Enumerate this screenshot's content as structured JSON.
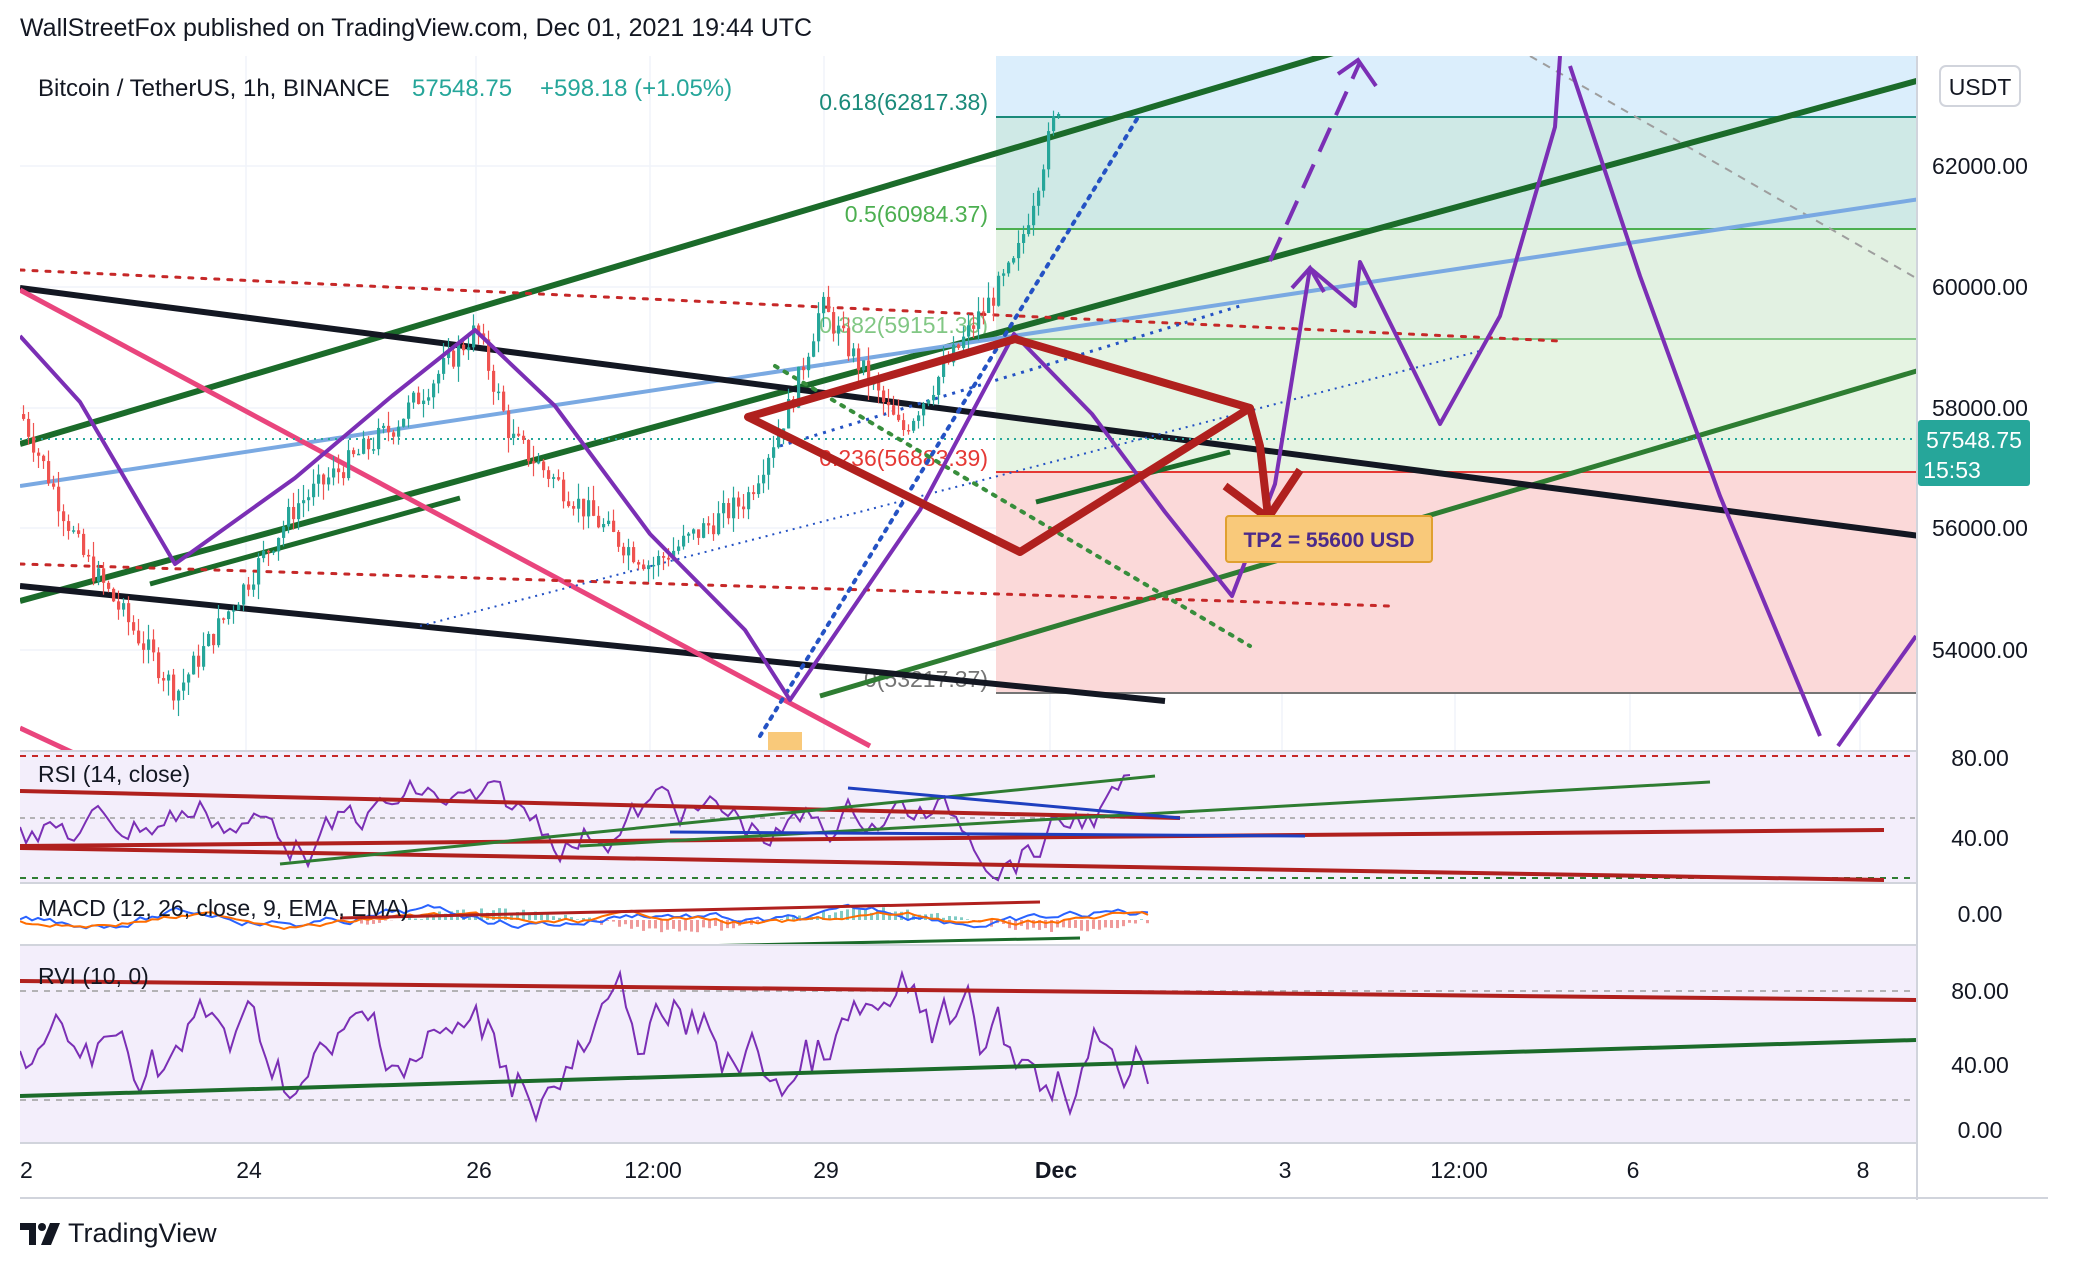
{
  "header": {
    "credit": "WallStreetFox published on TradingView.com, Dec 01, 2021 19:44 UTC"
  },
  "symbol": {
    "name": "Bitcoin / TetherUS, 1h, BINANCE",
    "price": "57548.75",
    "change": "+598.18 (+1.05%)"
  },
  "currency_label": "USDT",
  "last_price_tag": {
    "price": "57548.75",
    "countdown": "15:53"
  },
  "price_axis": {
    "labels": [
      "62000.00",
      "60000.00",
      "58000.00",
      "56000.00",
      "54000.00"
    ]
  },
  "time_axis": {
    "labels": [
      "2",
      "24",
      "26",
      "12:00",
      "29",
      "Dec",
      "3",
      "12:00",
      "6",
      "8"
    ]
  },
  "fib_levels": [
    {
      "label": "0.618(62817.38)",
      "value": 62817.38
    },
    {
      "label": "0.5(60984.37)",
      "value": 60984.37
    },
    {
      "label": "0.382(59151.36)",
      "value": 59151.36
    },
    {
      "label": "0.236(56883.39)",
      "value": 56883.39
    },
    {
      "label": "0(53217.37)",
      "value": 53217.37
    }
  ],
  "annotation": {
    "tp2": "TP2 = 55600 USD"
  },
  "indicators": {
    "rsi": {
      "title": "RSI (14, close)",
      "levels": [
        "80.00",
        "40.00"
      ]
    },
    "macd": {
      "title": "MACD (12, 26, close, 9, EMA, EMA)",
      "levels": [
        "0.00"
      ]
    },
    "rvi": {
      "title": "RVI (10, 0)",
      "levels": [
        "80.00",
        "40.00",
        "0.00"
      ]
    }
  },
  "brand": {
    "name": "TradingView"
  },
  "colors": {
    "up": "#26a69a",
    "down": "#ef5350",
    "purple": "#7b2fb5",
    "dark_red": "#b0201e",
    "green_channel": "#1b6b2a",
    "blue_line": "#78a9e3",
    "pink": "#e9457d"
  },
  "chart_data": {
    "type": "candlestick",
    "symbol": "BTCUSDT",
    "interval": "1h",
    "ylim": [
      52400,
      63900
    ],
    "last_price": 57548.75,
    "fib_retracement": [
      {
        "ratio": 0.618,
        "price": 62817.38
      },
      {
        "ratio": 0.5,
        "price": 60984.37
      },
      {
        "ratio": 0.382,
        "price": 59151.36
      },
      {
        "ratio": 0.236,
        "price": 56883.39
      },
      {
        "ratio": 0,
        "price": 53217.37
      }
    ],
    "target": {
      "label": "TP2",
      "price": 55600
    },
    "path_prices": [
      57900,
      55600,
      53300,
      56400,
      57700,
      59300,
      57500,
      55900,
      55400,
      56500,
      58100,
      59700,
      57600,
      60400,
      63200
    ]
  }
}
